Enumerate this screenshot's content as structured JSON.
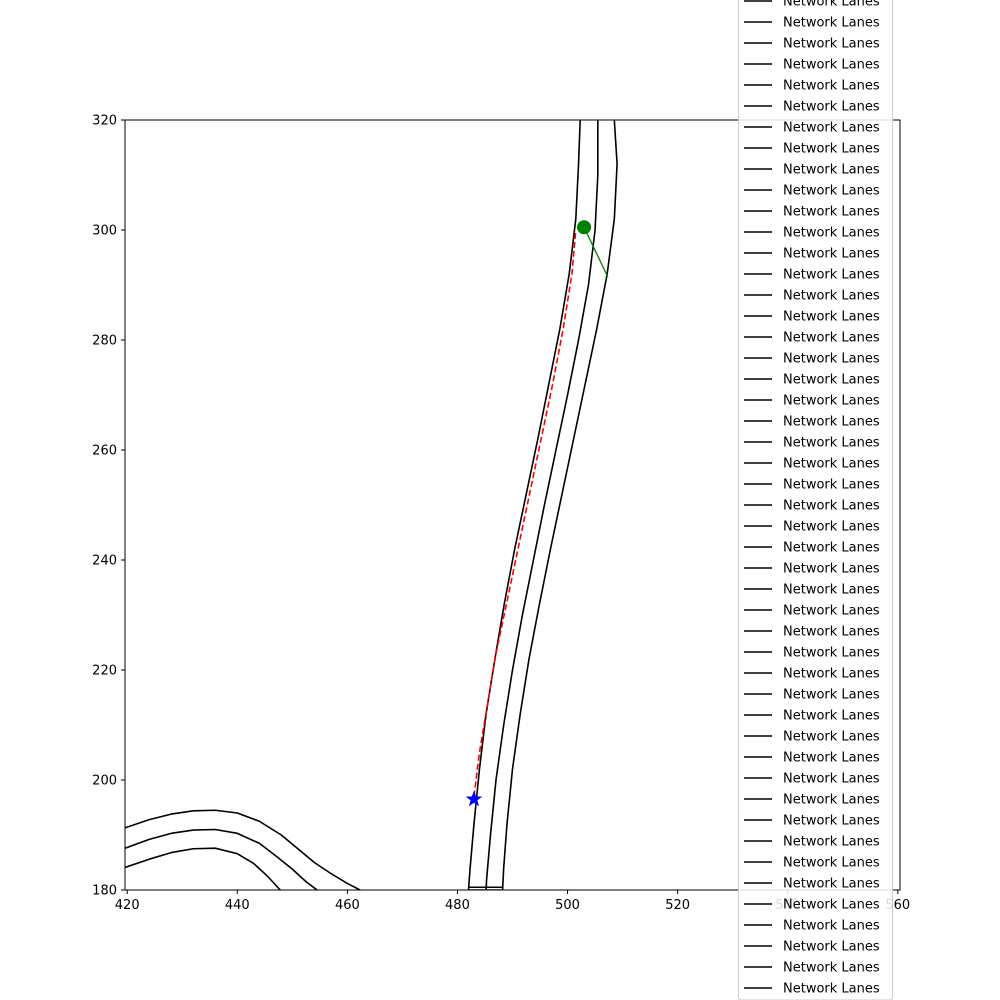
{
  "chart_data": {
    "type": "line",
    "title": "",
    "xlabel": "",
    "ylabel": "",
    "xlim": [
      419.6,
      560.4
    ],
    "ylim": [
      180,
      320
    ],
    "x_ticks": [
      420,
      440,
      460,
      480,
      500,
      520,
      540,
      560
    ],
    "y_ticks": [
      180,
      200,
      220,
      240,
      260,
      280,
      300,
      320
    ],
    "x_tick_labels": [
      "420",
      "440",
      "460",
      "480",
      "500",
      "520",
      "540",
      "560"
    ],
    "y_tick_labels": [
      "180",
      "200",
      "220",
      "240",
      "260",
      "280",
      "300",
      "320"
    ],
    "grid": false,
    "legend": {
      "placement": "right",
      "entry_label": "Network Lanes",
      "entry_count": 48
    },
    "series": [
      {
        "name": "Network Lanes",
        "role": "lane-boundary",
        "color": "#000000",
        "points": [
          [
            502.3,
            320
          ],
          [
            502.0,
            312
          ],
          [
            501.5,
            302
          ],
          [
            500.3,
            292
          ],
          [
            498.6,
            282
          ],
          [
            496.6,
            272
          ],
          [
            494.6,
            262
          ],
          [
            492.5,
            252
          ],
          [
            490.4,
            242
          ],
          [
            488.5,
            232
          ],
          [
            486.8,
            222
          ],
          [
            485.2,
            212
          ],
          [
            484.0,
            202
          ],
          [
            483.0,
            192
          ],
          [
            482.3,
            184
          ],
          [
            482.0,
            180
          ]
        ]
      },
      {
        "name": "Network Lanes",
        "role": "lane-boundary",
        "color": "#000000",
        "points": [
          [
            505.5,
            320
          ],
          [
            505.5,
            310
          ],
          [
            505.0,
            300
          ],
          [
            503.8,
            290
          ],
          [
            502.0,
            280
          ],
          [
            500.0,
            270
          ],
          [
            497.9,
            260
          ],
          [
            495.8,
            250
          ],
          [
            493.8,
            240
          ],
          [
            491.8,
            230
          ],
          [
            490.0,
            220
          ],
          [
            488.4,
            210
          ],
          [
            487.0,
            200
          ],
          [
            486.0,
            190
          ],
          [
            485.3,
            182
          ],
          [
            485.2,
            180
          ]
        ]
      },
      {
        "name": "Network Lanes",
        "role": "lane-boundary",
        "color": "#000000",
        "points": [
          [
            508.5,
            320
          ],
          [
            509.0,
            312
          ],
          [
            508.5,
            302
          ],
          [
            507.2,
            292
          ],
          [
            505.3,
            282
          ],
          [
            503.2,
            272
          ],
          [
            501.1,
            262
          ],
          [
            499.0,
            252
          ],
          [
            496.9,
            242
          ],
          [
            494.9,
            232
          ],
          [
            493.0,
            222
          ],
          [
            491.4,
            212
          ],
          [
            490.0,
            202
          ],
          [
            489.0,
            192
          ],
          [
            488.4,
            184
          ],
          [
            488.2,
            180
          ]
        ]
      },
      {
        "name": "Network Lanes",
        "role": "lane-end",
        "color": "#000000",
        "points": [
          [
            482.0,
            180
          ],
          [
            488.2,
            180
          ]
        ]
      },
      {
        "name": "Network Lanes",
        "role": "lane-end",
        "color": "#000000",
        "points": [
          [
            482.0,
            180.5
          ],
          [
            488.2,
            180.5
          ]
        ]
      },
      {
        "name": "Network Lanes",
        "role": "lane-boundary",
        "color": "#000000",
        "points": [
          [
            419.6,
            191.3
          ],
          [
            424,
            192.8
          ],
          [
            428,
            193.8
          ],
          [
            432,
            194.4
          ],
          [
            436,
            194.5
          ],
          [
            440,
            194.0
          ],
          [
            444,
            192.5
          ],
          [
            448,
            190.0
          ],
          [
            451,
            187.5
          ],
          [
            454,
            185.0
          ],
          [
            457,
            183.0
          ],
          [
            460,
            181.2
          ],
          [
            462.3,
            180
          ]
        ]
      },
      {
        "name": "Network Lanes",
        "role": "lane-boundary",
        "color": "#000000",
        "points": [
          [
            419.6,
            187.6
          ],
          [
            424,
            189.2
          ],
          [
            428,
            190.3
          ],
          [
            432,
            190.9
          ],
          [
            436,
            191.0
          ],
          [
            440,
            190.3
          ],
          [
            444,
            188.5
          ],
          [
            447,
            186.2
          ],
          [
            450,
            183.8
          ],
          [
            452.5,
            181.5
          ],
          [
            454.5,
            180
          ]
        ]
      },
      {
        "name": "Network Lanes",
        "role": "lane-boundary",
        "color": "#000000",
        "points": [
          [
            419.6,
            184.1
          ],
          [
            424,
            185.6
          ],
          [
            428,
            186.8
          ],
          [
            432,
            187.5
          ],
          [
            436,
            187.6
          ],
          [
            440,
            186.6
          ],
          [
            443,
            184.8
          ],
          [
            445.5,
            182.5
          ],
          [
            447.8,
            180
          ]
        ]
      },
      {
        "name": "",
        "role": "planned-path",
        "color": "#ff0000",
        "style": "dashed",
        "points": [
          [
            483.0,
            197
          ],
          [
            484.0,
            205
          ],
          [
            485.5,
            214
          ],
          [
            487.0,
            223
          ],
          [
            488.9,
            232
          ],
          [
            491.0,
            242
          ],
          [
            493.1,
            252
          ],
          [
            495.2,
            262
          ],
          [
            497.3,
            272
          ],
          [
            499.2,
            282
          ],
          [
            500.8,
            292
          ],
          [
            501.5,
            300
          ]
        ]
      },
      {
        "name": "",
        "role": "heading-line",
        "color": "#008000",
        "points": [
          [
            503.0,
            300.5
          ],
          [
            507.3,
            291.5
          ]
        ]
      }
    ],
    "markers": [
      {
        "name": "",
        "role": "vehicle-position",
        "shape": "circle",
        "color": "#008000",
        "x": 503.0,
        "y": 300.5
      },
      {
        "name": "",
        "role": "goal",
        "shape": "star",
        "color": "#0000ff",
        "x": 483.0,
        "y": 196.5
      }
    ]
  }
}
